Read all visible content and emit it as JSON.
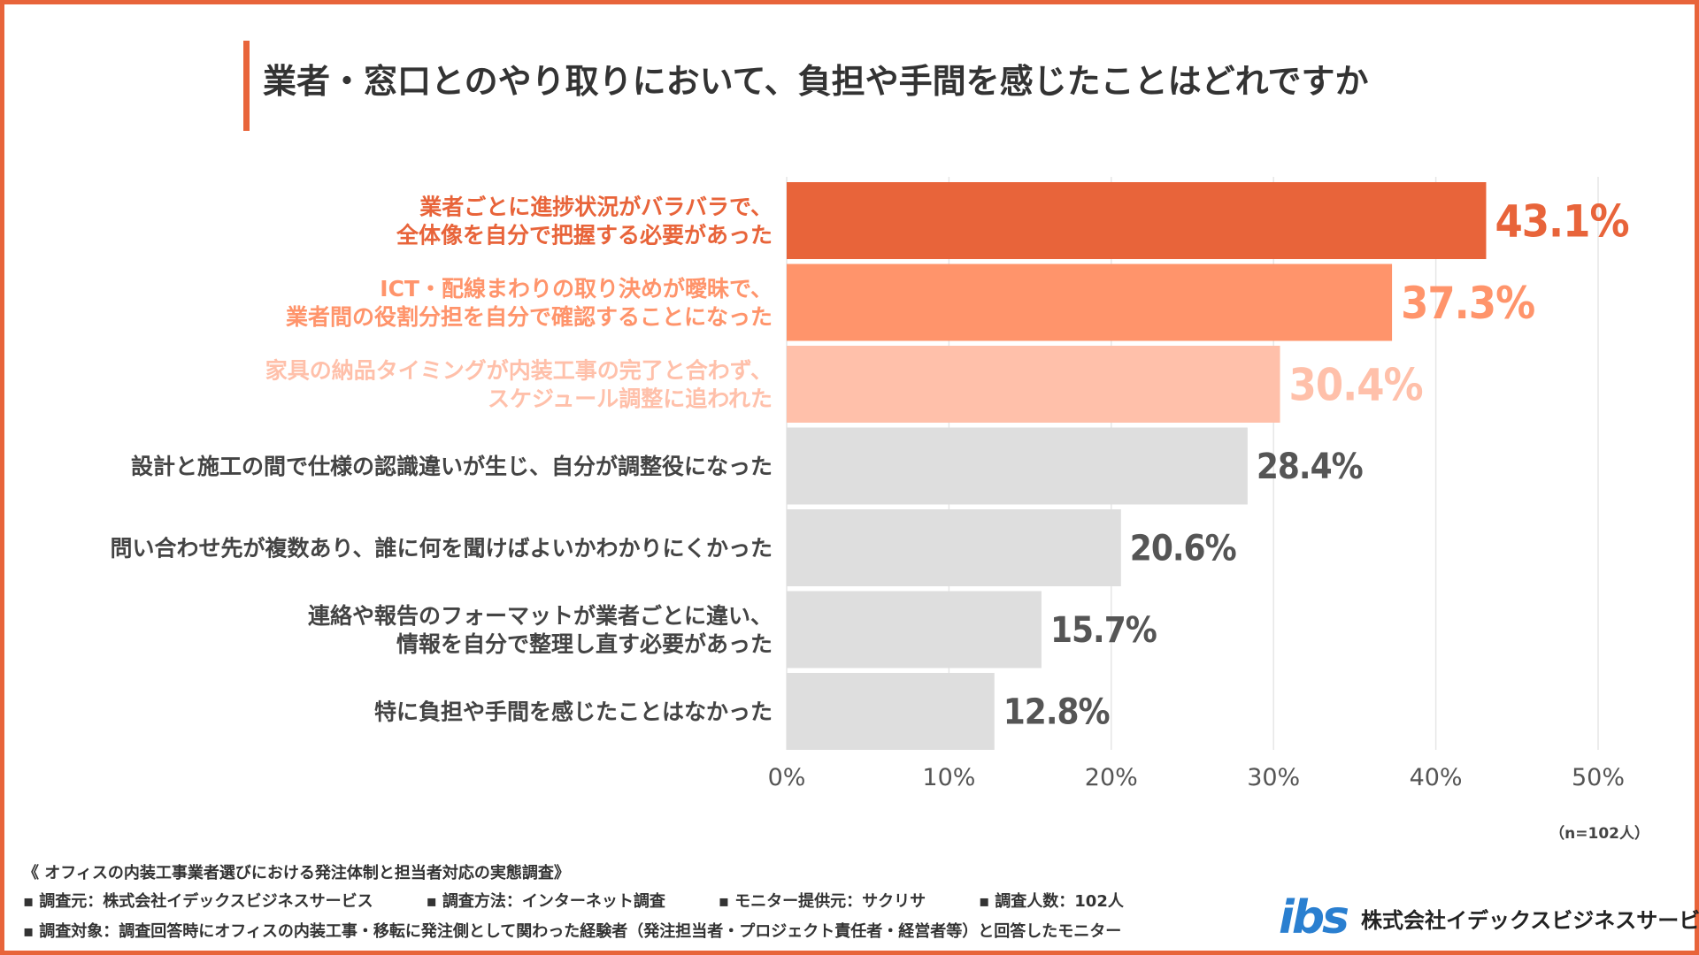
{
  "title": "業者・窓口とのやり取りにおいて、負担や手間を感じたことはどれですか",
  "colors": {
    "accent": "#E8643A",
    "bar1": "#E8643A",
    "bar2": "#FF946B",
    "bar3": "#FFC0AA",
    "bar_other": "#DEDEDE",
    "label_other": "#444444",
    "value_other": "#555555"
  },
  "chart_data": {
    "type": "bar",
    "orientation": "horizontal",
    "categories": [
      [
        "業者ごとに進捗状況がバラバラで、",
        "全体像を自分で把握する必要があった"
      ],
      [
        "ICT・配線まわりの取り決めが曖昧で、",
        "業者間の役割分担を自分で確認することになった"
      ],
      [
        "家具の納品タイミングが内装工事の完了と合わず、",
        "スケジュール調整に追われた"
      ],
      [
        "設計と施工の間で仕様の認識違いが生じ、自分が調整役になった"
      ],
      [
        "問い合わせ先が複数あり、誰に何を聞けばよいかわかりにくかった"
      ],
      [
        "連絡や報告のフォーマットが業者ごとに違い、",
        "情報を自分で整理し直す必要があった"
      ],
      [
        "特に負担や手間を感じたことはなかった"
      ]
    ],
    "values": [
      43.1,
      37.3,
      30.4,
      28.4,
      20.6,
      15.7,
      12.8
    ],
    "value_labels": [
      "43.1%",
      "37.3%",
      "30.4%",
      "28.4%",
      "20.6%",
      "15.7%",
      "12.8%"
    ],
    "xlim": [
      0,
      50
    ],
    "xticks": [
      0,
      10,
      20,
      30,
      40,
      50
    ],
    "xtick_labels": [
      "0%",
      "10%",
      "20%",
      "30%",
      "40%",
      "50%"
    ],
    "grid": true
  },
  "sample_note": "（n=102人）",
  "footer": {
    "survey_title": "《 オフィスの内装工事業者選びにおける発注体制と担当者対応の実態調査》",
    "row1": [
      "調査元：株式会社イデックスビジネスサービス",
      "調査方法：インターネット調査",
      "モニター提供元：サクリサ",
      "調査人数：102人"
    ],
    "row2": "調査対象：調査回答時にオフィスの内装工事・移転に発注側として関わった経験者（発注担当者・プロジェクト責任者・経営者等）と回答したモニター"
  },
  "logo": {
    "mark": "ibs",
    "company": "株式会社イデックスビジネスサービス"
  }
}
